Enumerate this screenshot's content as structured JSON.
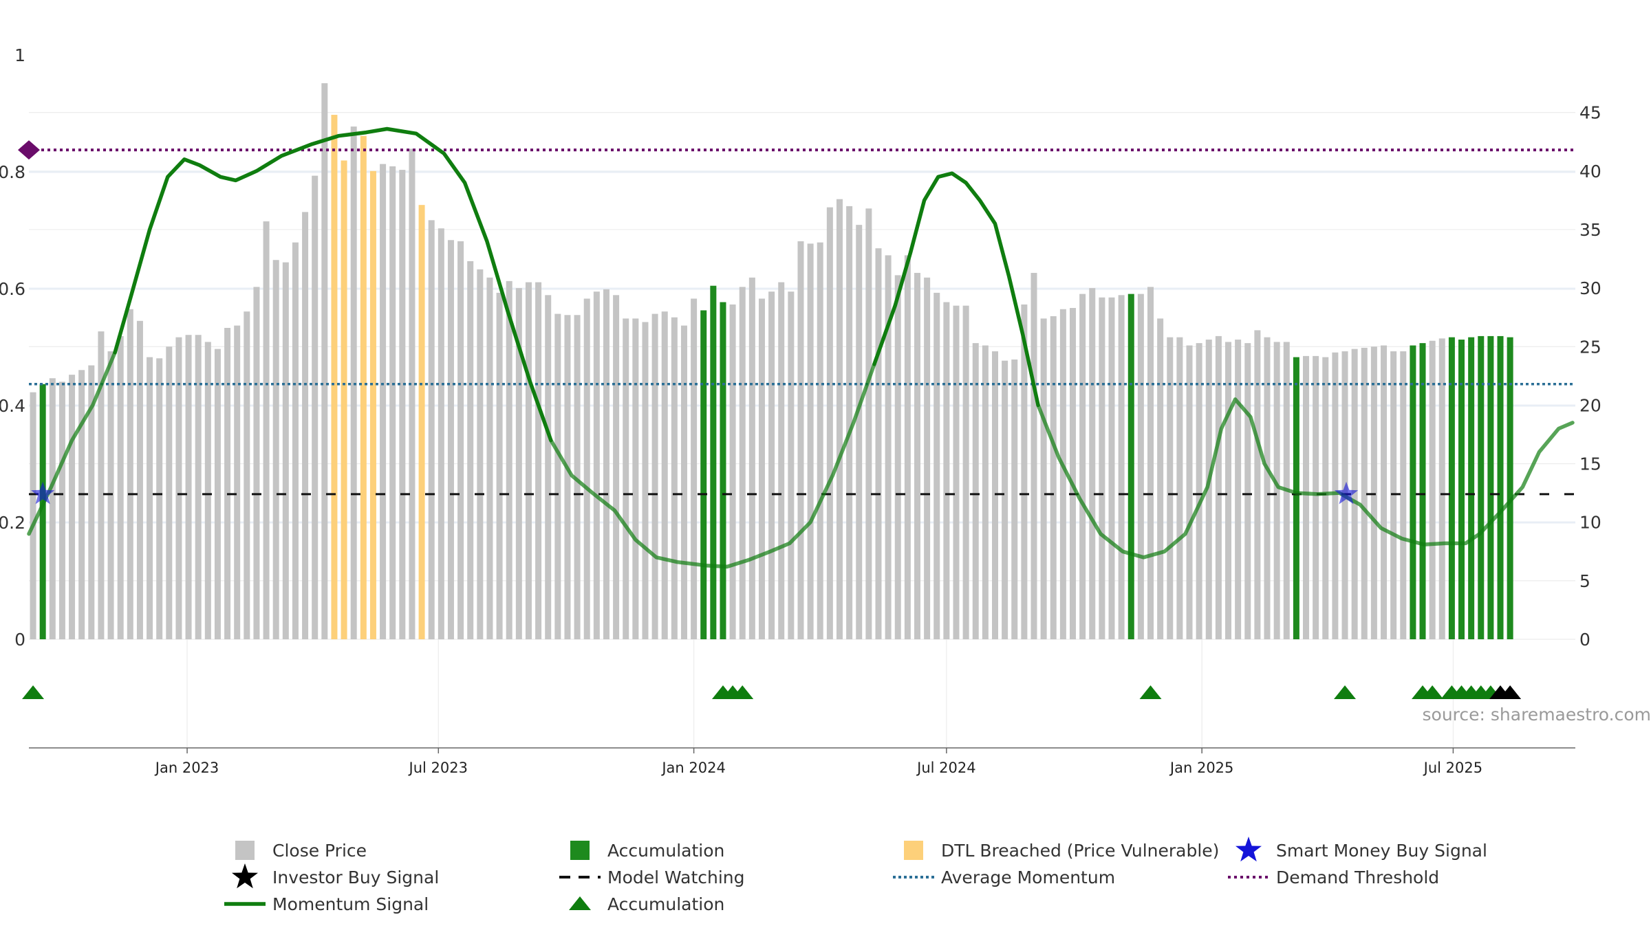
{
  "chart_data": {
    "type": "bar",
    "title": "",
    "xlabel": "",
    "ylabel": "",
    "source": "source: sharemaestro.com",
    "y_left": {
      "range": [
        0,
        1
      ],
      "ticks": [
        "0",
        "0.2",
        "0.4",
        "0.6",
        "0.8",
        "1"
      ]
    },
    "y_right": {
      "range": [
        0,
        50
      ],
      "ticks": [
        "0",
        "5",
        "10",
        "15",
        "20",
        "25",
        "30",
        "35",
        "40",
        "45"
      ]
    },
    "x_axis": {
      "start": "2022-09-09",
      "end": "2025-09-27",
      "ticks": [
        {
          "date": "2023-01-01",
          "label": "Jan 2023"
        },
        {
          "date": "2023-07-01",
          "label": "Jul 2023"
        },
        {
          "date": "2024-01-01",
          "label": "Jan 2024"
        },
        {
          "date": "2024-07-01",
          "label": "Jul 2024"
        },
        {
          "date": "2025-01-01",
          "label": "Jan 2025"
        },
        {
          "date": "2025-07-01",
          "label": "Jul 2025"
        }
      ]
    },
    "bars_start_date": "2022-09-12",
    "bars_interval_days": 7,
    "close_price": [
      21.1,
      21.8,
      22.3,
      22.0,
      22.6,
      23.0,
      23.4,
      26.3,
      24.6,
      25.9,
      28.2,
      27.2,
      24.1,
      24.0,
      25.0,
      25.8,
      26.0,
      26.0,
      25.4,
      24.8,
      26.6,
      26.8,
      28.0,
      30.1,
      35.7,
      32.4,
      32.2,
      33.9,
      36.5,
      39.6,
      47.5,
      44.8,
      40.9,
      43.8,
      43.0,
      40.0,
      40.6,
      40.4,
      40.1,
      41.9,
      37.1,
      35.8,
      35.1,
      34.1,
      34.0,
      32.3,
      31.6,
      30.9,
      29.6,
      30.6,
      30.0,
      30.5,
      30.5,
      29.4,
      27.8,
      27.7,
      27.7,
      29.1,
      29.7,
      29.9,
      29.4,
      27.4,
      27.4,
      27.1,
      27.8,
      28.0,
      27.5,
      26.8,
      29.1,
      28.1,
      30.2,
      28.8,
      28.6,
      30.1,
      30.9,
      29.1,
      29.7,
      30.5,
      29.7,
      34.0,
      33.8,
      33.9,
      36.9,
      37.6,
      37.0,
      35.4,
      36.8,
      33.4,
      32.8,
      31.1,
      32.8,
      31.3,
      30.9,
      29.6,
      28.8,
      28.5,
      28.5,
      25.3,
      25.1,
      24.6,
      23.8,
      23.9,
      28.6,
      31.3,
      27.4,
      27.6,
      28.2,
      28.3,
      29.5,
      30.0,
      29.2,
      29.2,
      29.4,
      29.5,
      29.5,
      30.1,
      27.4,
      25.8,
      25.8,
      25.1,
      25.3,
      25.6,
      25.9,
      25.4,
      25.6,
      25.3,
      26.4,
      25.8,
      25.4,
      25.4,
      24.1,
      24.2,
      24.2,
      24.1,
      24.5,
      24.6,
      24.8,
      24.9,
      25.0,
      25.1,
      24.6,
      24.6,
      25.1,
      25.3,
      25.5,
      25.7,
      25.8,
      25.6,
      25.8,
      25.9,
      25.9,
      25.9,
      25.8
    ],
    "bar_categories": {
      "accumulation": [
        1,
        69,
        70,
        71,
        113,
        130,
        142,
        143,
        146,
        147,
        148,
        149,
        150,
        151,
        152
      ],
      "dtl_breached": [
        31,
        32,
        34,
        35,
        40
      ]
    },
    "momentum_signal": [
      [
        "2022-09-09",
        9.0
      ],
      [
        "2022-09-25",
        13.0
      ],
      [
        "2022-10-10",
        17.0
      ],
      [
        "2022-10-25",
        20.0
      ],
      [
        "2022-11-10",
        24.5
      ],
      [
        "2022-11-22",
        29.5
      ],
      [
        "2022-12-05",
        35.0
      ],
      [
        "2022-12-18",
        39.5
      ],
      [
        "2022-12-30",
        41.0
      ],
      [
        "2023-01-10",
        40.5
      ],
      [
        "2023-01-25",
        39.5
      ],
      [
        "2023-02-05",
        39.2
      ],
      [
        "2023-02-20",
        40.0
      ],
      [
        "2023-03-10",
        41.3
      ],
      [
        "2023-04-01",
        42.3
      ],
      [
        "2023-04-20",
        43.0
      ],
      [
        "2023-05-10",
        43.3
      ],
      [
        "2023-05-25",
        43.6
      ],
      [
        "2023-06-15",
        43.2
      ],
      [
        "2023-07-05",
        41.5
      ],
      [
        "2023-07-20",
        39.0
      ],
      [
        "2023-08-05",
        34.0
      ],
      [
        "2023-08-20",
        28.0
      ],
      [
        "2023-09-05",
        22.0
      ],
      [
        "2023-09-20",
        17.0
      ],
      [
        "2023-10-05",
        14.0
      ],
      [
        "2023-10-20",
        12.5
      ],
      [
        "2023-11-05",
        11.0
      ],
      [
        "2023-11-20",
        8.5
      ],
      [
        "2023-12-05",
        7.0
      ],
      [
        "2023-12-20",
        6.6
      ],
      [
        "2024-01-10",
        6.3
      ],
      [
        "2024-01-25",
        6.2
      ],
      [
        "2024-02-10",
        6.8
      ],
      [
        "2024-02-25",
        7.5
      ],
      [
        "2024-03-10",
        8.2
      ],
      [
        "2024-03-25",
        10.0
      ],
      [
        "2024-04-10",
        14.0
      ],
      [
        "2024-04-25",
        18.5
      ],
      [
        "2024-05-10",
        23.5
      ],
      [
        "2024-05-25",
        28.5
      ],
      [
        "2024-06-05",
        33.0
      ],
      [
        "2024-06-15",
        37.5
      ],
      [
        "2024-06-25",
        39.5
      ],
      [
        "2024-07-05",
        39.8
      ],
      [
        "2024-07-15",
        39.0
      ],
      [
        "2024-07-25",
        37.5
      ],
      [
        "2024-08-05",
        35.5
      ],
      [
        "2024-08-15",
        31.0
      ],
      [
        "2024-08-25",
        26.0
      ],
      [
        "2024-09-05",
        20.0
      ],
      [
        "2024-09-20",
        15.5
      ],
      [
        "2024-10-05",
        12.0
      ],
      [
        "2024-10-20",
        9.0
      ],
      [
        "2024-11-05",
        7.5
      ],
      [
        "2024-11-20",
        7.0
      ],
      [
        "2024-12-05",
        7.5
      ],
      [
        "2024-12-20",
        9.0
      ],
      [
        "2025-01-05",
        13.0
      ],
      [
        "2025-01-15",
        18.0
      ],
      [
        "2025-01-25",
        20.5
      ],
      [
        "2025-02-05",
        19.0
      ],
      [
        "2025-02-15",
        15.0
      ],
      [
        "2025-02-25",
        13.0
      ],
      [
        "2025-03-10",
        12.5
      ],
      [
        "2025-03-25",
        12.4
      ],
      [
        "2025-04-10",
        12.5
      ],
      [
        "2025-04-25",
        11.5
      ],
      [
        "2025-05-10",
        9.5
      ],
      [
        "2025-05-25",
        8.6
      ],
      [
        "2025-06-10",
        8.1
      ],
      [
        "2025-06-25",
        8.2
      ],
      [
        "2025-07-10",
        8.2
      ],
      [
        "2025-07-20",
        9.0
      ],
      [
        "2025-08-05",
        11.0
      ],
      [
        "2025-08-20",
        13.0
      ],
      [
        "2025-09-01",
        16.0
      ],
      [
        "2025-09-15",
        18.0
      ],
      [
        "2025-09-25",
        18.5
      ]
    ],
    "average_momentum": 21.8,
    "demand_threshold": 41.8,
    "model_watching": 12.4,
    "smart_money_buy_signals": [
      [
        "2022-09-19",
        12.4
      ],
      [
        "2025-04-15",
        12.4
      ]
    ],
    "accumulation_markers": [
      "2022-09-12",
      "2024-01-22",
      "2024-01-29",
      "2024-02-05",
      "2024-11-25",
      "2025-04-14",
      "2025-06-09",
      "2025-06-16",
      "2025-06-30",
      "2025-07-07",
      "2025-07-14",
      "2025-07-21",
      "2025-07-28"
    ],
    "investor_buy_signals": [
      "2025-08-04",
      "2025-08-11"
    ],
    "colors": {
      "close_price": "#c4c4c4",
      "accumulation": "#1e8a1e",
      "dtl_breached": "#fdd07a",
      "momentum": "#0f7d0f",
      "smart_money": "#1414d9",
      "investor": "#000000",
      "model_watching": "#111111",
      "average_momentum": "#2b6f96",
      "demand_threshold": "#6a0c6a"
    },
    "legend": {
      "placement": "bottom",
      "entries": [
        {
          "key": "close",
          "label": "Close Price"
        },
        {
          "key": "accum_bar",
          "label": "Accumulation"
        },
        {
          "key": "dtl",
          "label": "DTL Breached (Price Vulnerable)"
        },
        {
          "key": "smart",
          "label": "Smart Money Buy Signal"
        },
        {
          "key": "investor",
          "label": "Investor Buy Signal"
        },
        {
          "key": "watching",
          "label": "Model Watching"
        },
        {
          "key": "avg",
          "label": "Average Momentum"
        },
        {
          "key": "demand",
          "label": "Demand Threshold"
        },
        {
          "key": "momentum",
          "label": "Momentum Signal"
        },
        {
          "key": "accum_marker",
          "label": "Accumulation"
        }
      ]
    }
  }
}
